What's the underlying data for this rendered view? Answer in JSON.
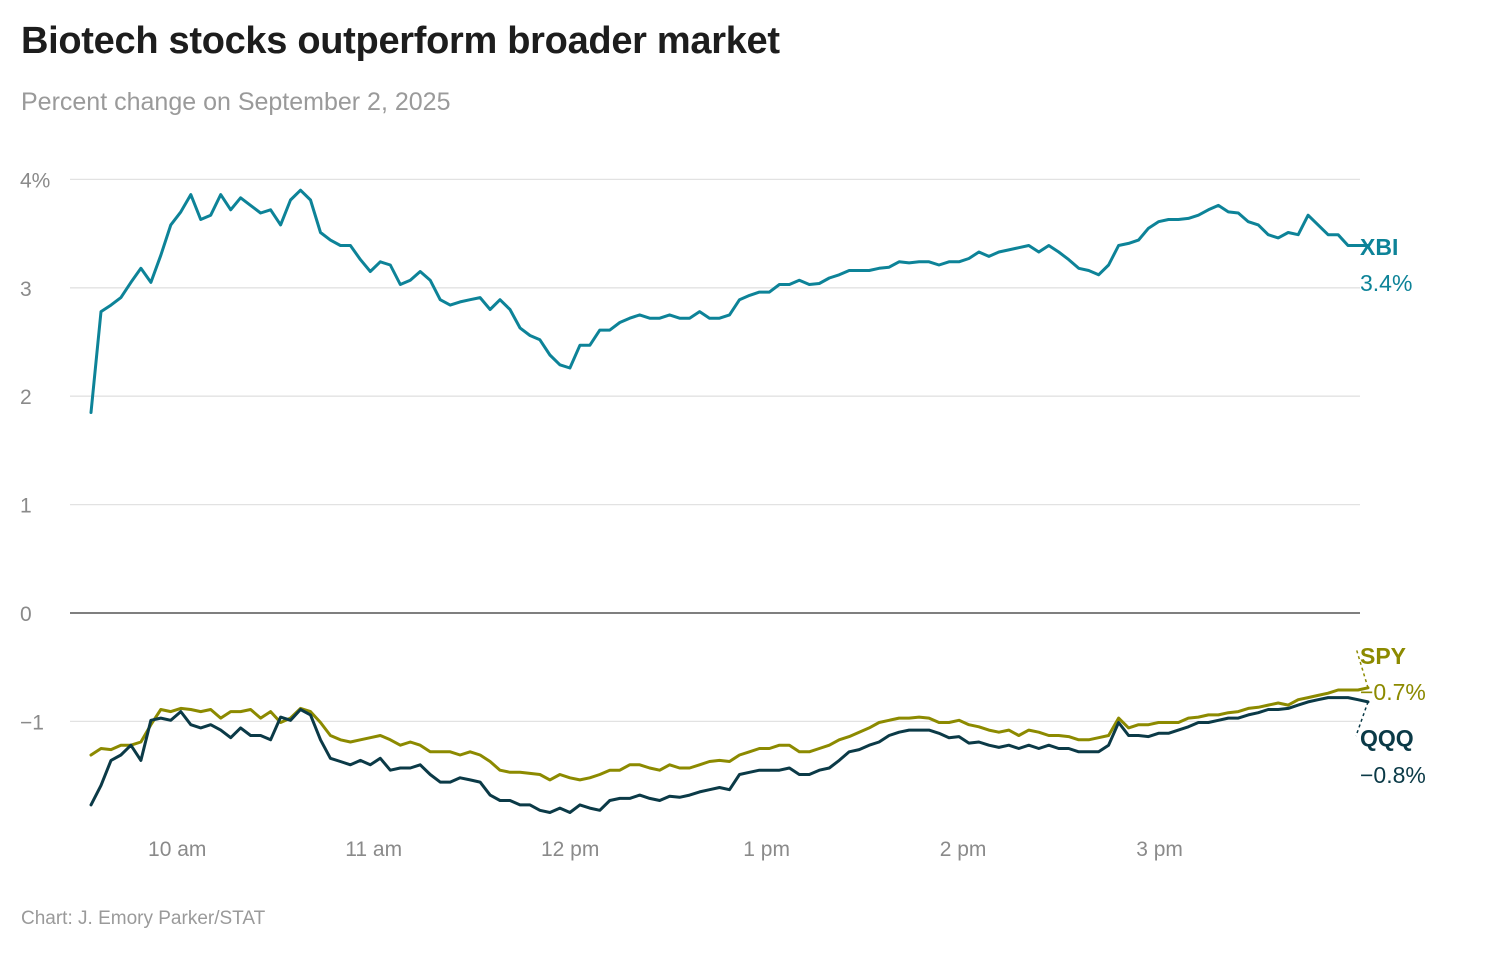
{
  "chart_data": {
    "type": "line",
    "title": "Biotech stocks outperform broader market",
    "subtitle": "Percent change on September 2, 2025",
    "source": "Chart: J. Emory Parker/STAT",
    "xlabel": "",
    "ylabel": "",
    "x_range": [
      "9:30",
      "16:00"
    ],
    "x_ticks": [
      {
        "time": "10:00",
        "label": "10 am"
      },
      {
        "time": "11:00",
        "label": "11 am"
      },
      {
        "time": "12:00",
        "label": "12 pm"
      },
      {
        "time": "13:00",
        "label": "1 pm"
      },
      {
        "time": "14:00",
        "label": "2 pm"
      },
      {
        "time": "15:00",
        "label": "3 pm"
      }
    ],
    "ylim": [
      -1.9,
      4.1
    ],
    "y_ticks": [
      {
        "value": 4,
        "label": "4%"
      },
      {
        "value": 3,
        "label": "3"
      },
      {
        "value": 2,
        "label": "2"
      },
      {
        "value": 1,
        "label": "1"
      },
      {
        "value": 0,
        "label": "0"
      },
      {
        "value": -1,
        "label": "−1"
      }
    ],
    "grid": true,
    "legend": "direct labels at right end of lines",
    "series": [
      {
        "name": "XBI",
        "end_label": "3.4%",
        "color": "#0d8398",
        "values": [
          1.85,
          2.78,
          2.84,
          2.91,
          3.05,
          3.18,
          3.05,
          3.3,
          3.58,
          3.7,
          3.86,
          3.63,
          3.67,
          3.86,
          3.72,
          3.83,
          3.76,
          3.69,
          3.72,
          3.58,
          3.81,
          3.9,
          3.81,
          3.51,
          3.44,
          3.39,
          3.39,
          3.26,
          3.15,
          3.24,
          3.21,
          3.03,
          3.07,
          3.15,
          3.07,
          2.89,
          2.84,
          2.87,
          2.89,
          2.91,
          2.8,
          2.89,
          2.8,
          2.63,
          2.56,
          2.52,
          2.38,
          2.29,
          2.26,
          2.47,
          2.47,
          2.61,
          2.61,
          2.68,
          2.72,
          2.75,
          2.72,
          2.72,
          2.75,
          2.72,
          2.72,
          2.78,
          2.72,
          2.72,
          2.75,
          2.89,
          2.93,
          2.96,
          2.96,
          3.03,
          3.03,
          3.07,
          3.03,
          3.04,
          3.09,
          3.12,
          3.16,
          3.16,
          3.16,
          3.18,
          3.19,
          3.24,
          3.23,
          3.24,
          3.24,
          3.21,
          3.24,
          3.24,
          3.27,
          3.33,
          3.29,
          3.33,
          3.35,
          3.37,
          3.39,
          3.33,
          3.39,
          3.33,
          3.26,
          3.18,
          3.16,
          3.12,
          3.21,
          3.39,
          3.41,
          3.44,
          3.55,
          3.61,
          3.63,
          3.63,
          3.64,
          3.67,
          3.72,
          3.76,
          3.7,
          3.69,
          3.61,
          3.58,
          3.49,
          3.46,
          3.51,
          3.49,
          3.67,
          3.58,
          3.49,
          3.49,
          3.39,
          3.39,
          3.39
        ]
      },
      {
        "name": "SPY",
        "end_label": "−0.7%",
        "color": "#8c8a00",
        "values": [
          -1.31,
          -1.25,
          -1.26,
          -1.22,
          -1.22,
          -1.19,
          -1.03,
          -0.89,
          -0.91,
          -0.88,
          -0.89,
          -0.91,
          -0.89,
          -0.97,
          -0.91,
          -0.91,
          -0.89,
          -0.97,
          -0.91,
          -1.01,
          -0.97,
          -0.88,
          -0.91,
          -1.01,
          -1.13,
          -1.17,
          -1.19,
          -1.17,
          -1.15,
          -1.13,
          -1.17,
          -1.22,
          -1.19,
          -1.22,
          -1.28,
          -1.28,
          -1.28,
          -1.31,
          -1.28,
          -1.31,
          -1.37,
          -1.45,
          -1.47,
          -1.47,
          -1.48,
          -1.49,
          -1.54,
          -1.49,
          -1.52,
          -1.54,
          -1.52,
          -1.49,
          -1.45,
          -1.45,
          -1.4,
          -1.4,
          -1.43,
          -1.45,
          -1.4,
          -1.43,
          -1.43,
          -1.4,
          -1.37,
          -1.36,
          -1.37,
          -1.31,
          -1.28,
          -1.25,
          -1.25,
          -1.22,
          -1.22,
          -1.28,
          -1.28,
          -1.25,
          -1.22,
          -1.17,
          -1.14,
          -1.1,
          -1.06,
          -1.01,
          -0.99,
          -0.97,
          -0.97,
          -0.96,
          -0.97,
          -1.01,
          -1.01,
          -0.99,
          -1.03,
          -1.05,
          -1.08,
          -1.1,
          -1.08,
          -1.13,
          -1.08,
          -1.1,
          -1.13,
          -1.13,
          -1.14,
          -1.17,
          -1.17,
          -1.15,
          -1.13,
          -0.97,
          -1.06,
          -1.03,
          -1.03,
          -1.01,
          -1.01,
          -1.01,
          -0.97,
          -0.96,
          -0.94,
          -0.94,
          -0.92,
          -0.91,
          -0.88,
          -0.87,
          -0.85,
          -0.83,
          -0.85,
          -0.8,
          -0.78,
          -0.76,
          -0.74,
          -0.71,
          -0.71,
          -0.71,
          -0.69
        ]
      },
      {
        "name": "QQQ",
        "end_label": "−0.8%",
        "color": "#0b3a47",
        "values": [
          -1.77,
          -1.59,
          -1.36,
          -1.31,
          -1.22,
          -1.36,
          -0.99,
          -0.97,
          -0.99,
          -0.91,
          -1.03,
          -1.06,
          -1.03,
          -1.08,
          -1.15,
          -1.06,
          -1.13,
          -1.13,
          -1.17,
          -0.96,
          -0.99,
          -0.89,
          -0.94,
          -1.17,
          -1.34,
          -1.37,
          -1.4,
          -1.36,
          -1.4,
          -1.34,
          -1.45,
          -1.43,
          -1.43,
          -1.4,
          -1.49,
          -1.56,
          -1.56,
          -1.52,
          -1.54,
          -1.56,
          -1.68,
          -1.73,
          -1.73,
          -1.77,
          -1.77,
          -1.82,
          -1.84,
          -1.8,
          -1.84,
          -1.77,
          -1.8,
          -1.82,
          -1.73,
          -1.71,
          -1.71,
          -1.68,
          -1.71,
          -1.73,
          -1.69,
          -1.7,
          -1.68,
          -1.65,
          -1.63,
          -1.61,
          -1.63,
          -1.49,
          -1.47,
          -1.45,
          -1.45,
          -1.45,
          -1.43,
          -1.49,
          -1.49,
          -1.45,
          -1.43,
          -1.36,
          -1.28,
          -1.26,
          -1.22,
          -1.19,
          -1.13,
          -1.1,
          -1.08,
          -1.08,
          -1.08,
          -1.11,
          -1.15,
          -1.14,
          -1.2,
          -1.19,
          -1.22,
          -1.24,
          -1.22,
          -1.25,
          -1.22,
          -1.25,
          -1.22,
          -1.25,
          -1.25,
          -1.28,
          -1.28,
          -1.28,
          -1.22,
          -1.01,
          -1.13,
          -1.13,
          -1.14,
          -1.11,
          -1.11,
          -1.08,
          -1.05,
          -1.01,
          -1.01,
          -0.99,
          -0.97,
          -0.97,
          -0.94,
          -0.92,
          -0.89,
          -0.89,
          -0.88,
          -0.85,
          -0.82,
          -0.8,
          -0.78,
          -0.78,
          -0.78,
          -0.8,
          -0.82
        ]
      }
    ]
  }
}
